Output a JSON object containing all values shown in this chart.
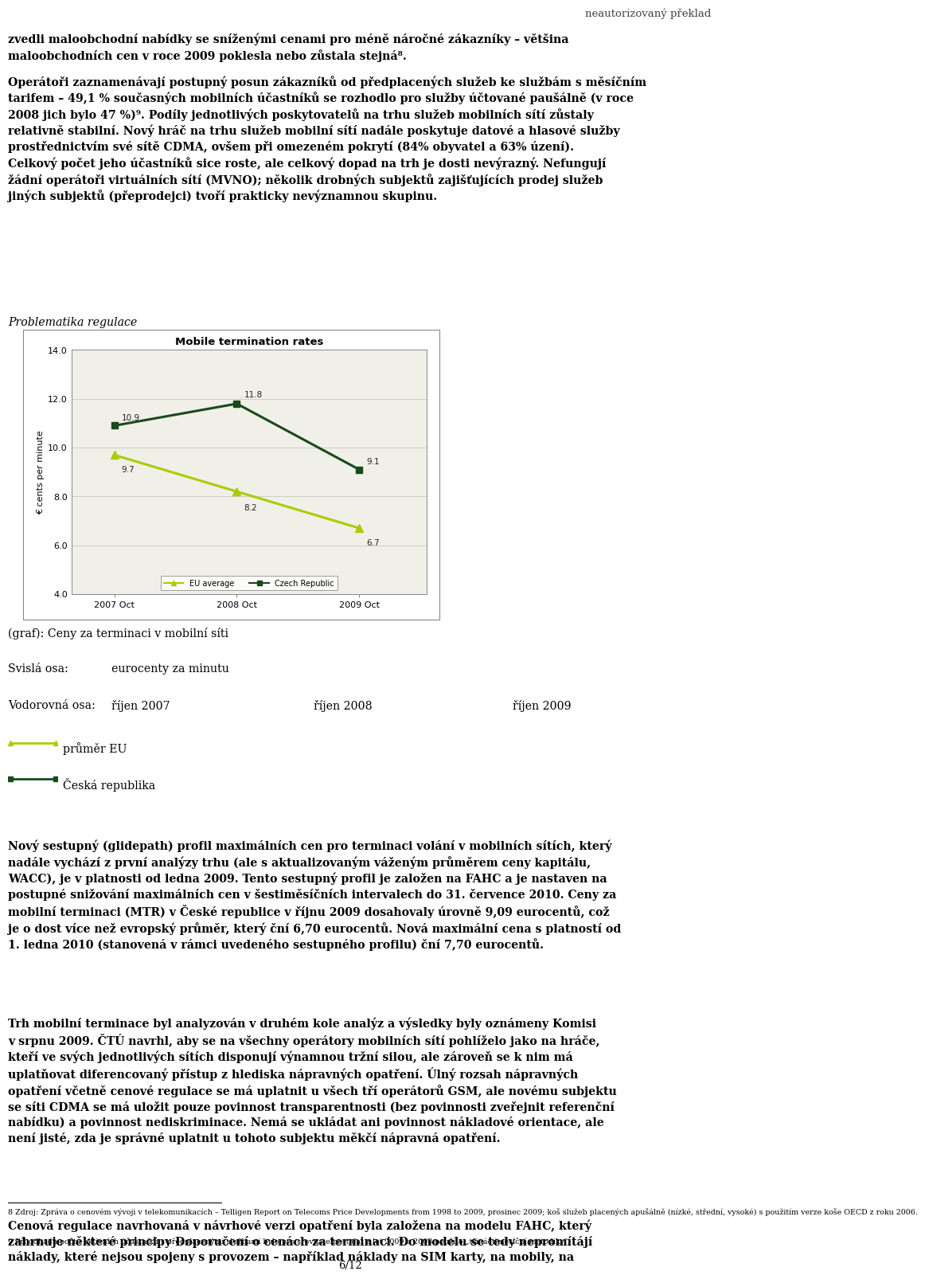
{
  "page_title": "neautorizovaný překlad",
  "chart_title": "Mobile termination rates",
  "chart_ylabel": "€ cents per minute",
  "chart_x_labels": [
    "2007 Oct",
    "2008 Oct",
    "2009 Oct"
  ],
  "eu_average": [
    9.7,
    8.2,
    6.7
  ],
  "czech_republic": [
    10.9,
    11.8,
    9.1
  ],
  "eu_color": "#aacc00",
  "czech_color": "#1a4a1a",
  "ylim_min": 4.0,
  "ylim_max": 14.0,
  "yticks": [
    4.0,
    6.0,
    8.0,
    10.0,
    12.0,
    14.0
  ],
  "legend_eu": "EU average",
  "legend_czech": "Czech Republic",
  "graph_caption": "(graf): Ceny za terminaci v mobilní síti",
  "svisle_label": "Svislá osa:",
  "svisle_value": "eurocenty za minutu",
  "vodorovna_label": "Vodorovná osa:",
  "vodorovna_values": [
    "říjen 2007",
    "říjen 2008",
    "říjen 2009"
  ],
  "legend_line1": "průměr EU",
  "legend_line2": "Česká republika",
  "prob_reg": "Problematika regulace",
  "text_p1_l1": "zvedli maloobchodní nabídky se sníženými cenami pro méně náročné zákazníky – většina",
  "text_p1_l2": "maloobchodních cen v roce 2009 poklesla nebo zůstala stejná⁸.",
  "text_p2_l1": "Operátoři zaznamenávají postupný posun zákazníků od předplacených služeb ke službám s měsíčním",
  "text_p2_l2": "tarifem – 49,1 % současných mobilních účastníků se rozhodlo pro služby účtované paušálně (v roce",
  "text_p2_l3": "2008 jich bylo 47 %)⁹. Podíly jednotlivých poskytovatelů na trhu služeb mobilních sítí zůstaly",
  "text_p2_l4": "relativně stabilní. Nový hráč na trhu služeb mobilní sítí nadále poskytuje datové a hlasové služby",
  "text_p2_l5": "prostřednictvím své sítě CDMA, ovšem při omezeném pokrytí (84% obyvatel a 63% úzení).",
  "text_p2_l6": "Celkový počet jeho účastníků sice roste, ale celkový dopad na trh je dosti nevýrazný. Nefungují",
  "text_p2_l7": "žádní operátoři virtuálních sítí (MVNO); několik drobných subjektů zajišťujících prodej služeb",
  "text_p2_l8": "jiných subjektů (přeprodejci) tvoří prakticky nevýznamnou skupinu.",
  "bp1_l1": "Nový sestupný (glidepath) profil maximálních cen pro terminaci volání v mobilních sítích, který",
  "bp1_l2": "nadále vychází z první analýzy trhu (ale s aktualizovaným váženým průměrem ceny kapitálu,",
  "bp1_l3": "WACC), je v platnosti od ledna 2009. Tento sestupný profil je založen na FAHC a je nastaven na",
  "bp1_l4": "postupné snižování maximálních cen v šestiměsíčních intervalech do 31. července 2010. Ceny za",
  "bp1_l5": "mobilní terminaci (MTR) v České republice v říjnu 2009 dosahovaly úrovně 9,09 eurocentů, což",
  "bp1_l6": "je o dost více než evropský průměr, který ční 6,70 eurocentů. Nová maximální cena s platností od",
  "bp1_l7": "1. ledna 2010 (stanovená v rámci uvedeného sestupného profilu) ční 7,70 eurocentů.",
  "bp2_l1": "Trh mobilní terminace byl analyzován v druhém kole analýz a výsledky byly oznámeny Komisi",
  "bp2_l2": "v srpnu 2009. ČTÚ navrhl, aby se na všechny operátory mobilních sítí pohlíželo jako na hráče,",
  "bp2_l3": "kteří ve svých jednotlivých sítích disponují výnamnou tržní silou, ale zároveň se k nim má",
  "bp2_l4": "uplatňovat diferencovaný přístup z hlediska nápravných opatření. Úlný rozsah nápravných",
  "bp2_l5": "opatření včetně cenové regulace se má uplatnit u všech tří operátorů GSM, ale novému subjektu",
  "bp2_l6": "se síti CDMA se má uložit pouze povinnost transparentnosti (bez povinnosti zveřejnit referenční",
  "bp2_l7": "nabídku) a povinnost nediskriminace. Nemá se ukládat ani povinnost nákladové orientace, ale",
  "bp2_l8": "není jisté, zda je správné uplatnit u tohoto subjektu měkčí nápravná opatření.",
  "bp3_l1": "Cenová regulace navrhovaná v návrhové verzi opatření byla založena na modelu FAHC, který",
  "bp3_l2": "zahrnuje některé principy Doporučení o cenách za terminaci. Do modelu se tedy nepromítájí",
  "bp3_l3": "náklady, které nejsou spojeny s provozem – například náklady na SIM karty, na mobily, na",
  "footnote8": "8 Zdroj: Zpráva o cenovém vývoji v telekomunikacích – Telligen Report on Telecoms Price Developments from 1998 to 2009, prosinec 2009; koš služeb placených apušálně (nízké, střední, vysoké) s použitím verze koše OECD z roku 2006.",
  "footnote9": "9 Při odhadu počtu aktivních účastníků s předplacenými službami bylo pro srovnatelnost dat z let 2009 a 2008 použito „třináctiměsíční metodiky\".",
  "page_number": "6/12",
  "bg_color": "#ffffff",
  "text_color": "#000000",
  "body_fs": 10.2,
  "small_fs": 7.5,
  "chart_bg": "#f0f0e8"
}
